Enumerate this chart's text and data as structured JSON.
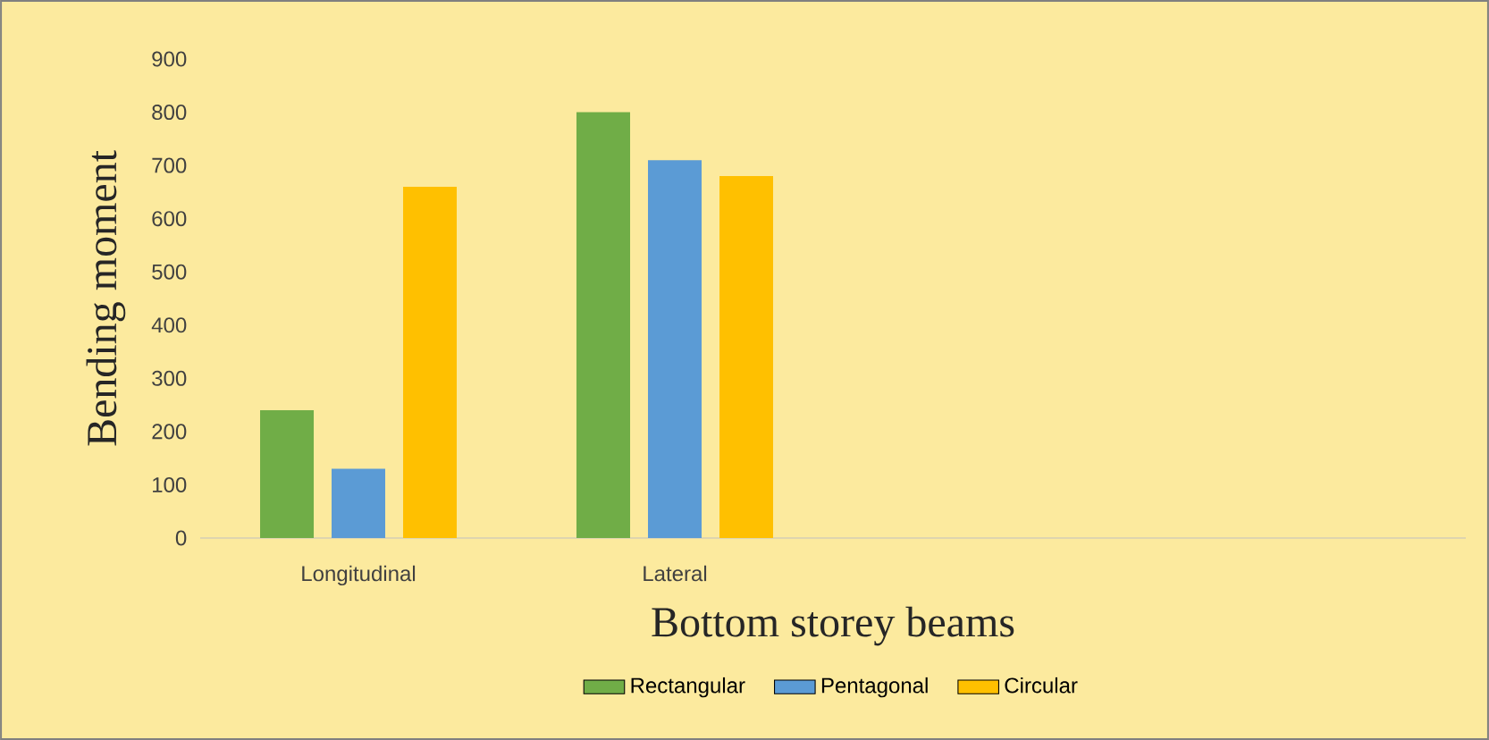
{
  "chart_data": {
    "type": "bar",
    "xlabel": "Bottom storey beams",
    "ylabel": "Bending moment",
    "categories": [
      "Longitudinal",
      "Lateral",
      null,
      null
    ],
    "series": [
      {
        "name": "Rectangular",
        "color": "#70ad47",
        "values": [
          240,
          800,
          null,
          null
        ]
      },
      {
        "name": "Pentagonal",
        "color": "#5b9bd5",
        "values": [
          130,
          710,
          null,
          null
        ]
      },
      {
        "name": "Circular",
        "color": "#ffc000",
        "values": [
          660,
          680,
          null,
          null
        ]
      }
    ],
    "ylim": [
      0,
      900
    ],
    "yticks": [
      0,
      100,
      200,
      300,
      400,
      500,
      600,
      700,
      800,
      900
    ],
    "legend": "bottom"
  }
}
